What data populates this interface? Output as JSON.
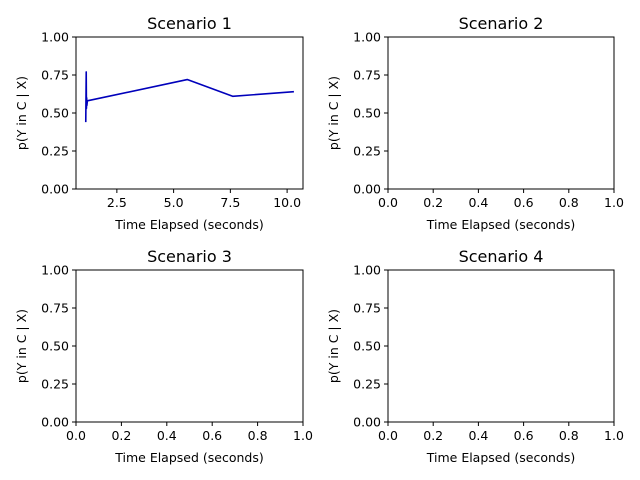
{
  "chart_data": [
    {
      "type": "line",
      "title": "Scenario 1",
      "xlabel": "Time Elapsed (seconds)",
      "ylabel": "p(Y in C | X)",
      "xlim": [
        0.7,
        10.7
      ],
      "ylim": [
        0,
        1
      ],
      "xticks": [
        "2.5",
        "5.0",
        "7.5",
        "10.0"
      ],
      "xtick_values": [
        2.5,
        5.0,
        7.5,
        10.0
      ],
      "yticks": [
        "0.00",
        "0.25",
        "0.50",
        "0.75",
        "1.00"
      ],
      "ytick_values": [
        0,
        0.25,
        0.5,
        0.75,
        1.0
      ],
      "grid": false,
      "series": [
        {
          "color": "#0000bb",
          "x": [
            1.13,
            1.15,
            1.16,
            1.17,
            1.18,
            1.2,
            5.6,
            7.6,
            10.3
          ],
          "y": [
            0.44,
            0.77,
            0.53,
            0.6,
            0.55,
            0.58,
            0.72,
            0.61,
            0.64
          ]
        }
      ]
    },
    {
      "type": "line",
      "title": "Scenario 2",
      "xlabel": "Time Elapsed (seconds)",
      "ylabel": "p(Y in C | X)",
      "xlim": [
        0,
        1
      ],
      "ylim": [
        0,
        1
      ],
      "xticks": [
        "0.0",
        "0.2",
        "0.4",
        "0.6",
        "0.8",
        "1.0"
      ],
      "xtick_values": [
        0,
        0.2,
        0.4,
        0.6,
        0.8,
        1.0
      ],
      "yticks": [
        "0.00",
        "0.25",
        "0.50",
        "0.75",
        "1.00"
      ],
      "ytick_values": [
        0,
        0.25,
        0.5,
        0.75,
        1.0
      ],
      "grid": false,
      "series": []
    },
    {
      "type": "line",
      "title": "Scenario 3",
      "xlabel": "Time Elapsed (seconds)",
      "ylabel": "p(Y in C | X)",
      "xlim": [
        0,
        1
      ],
      "ylim": [
        0,
        1
      ],
      "xticks": [
        "0.0",
        "0.2",
        "0.4",
        "0.6",
        "0.8",
        "1.0"
      ],
      "xtick_values": [
        0,
        0.2,
        0.4,
        0.6,
        0.8,
        1.0
      ],
      "yticks": [
        "0.00",
        "0.25",
        "0.50",
        "0.75",
        "1.00"
      ],
      "ytick_values": [
        0,
        0.25,
        0.5,
        0.75,
        1.0
      ],
      "grid": false,
      "series": []
    },
    {
      "type": "line",
      "title": "Scenario 4",
      "xlabel": "Time Elapsed (seconds)",
      "ylabel": "p(Y in C | X)",
      "xlim": [
        0,
        1
      ],
      "ylim": [
        0,
        1
      ],
      "xticks": [
        "0.0",
        "0.2",
        "0.4",
        "0.6",
        "0.8",
        "1.0"
      ],
      "xtick_values": [
        0,
        0.2,
        0.4,
        0.6,
        0.8,
        1.0
      ],
      "yticks": [
        "0.00",
        "0.25",
        "0.50",
        "0.75",
        "1.00"
      ],
      "ytick_values": [
        0,
        0.25,
        0.5,
        0.75,
        1.0
      ],
      "grid": false,
      "series": []
    }
  ]
}
